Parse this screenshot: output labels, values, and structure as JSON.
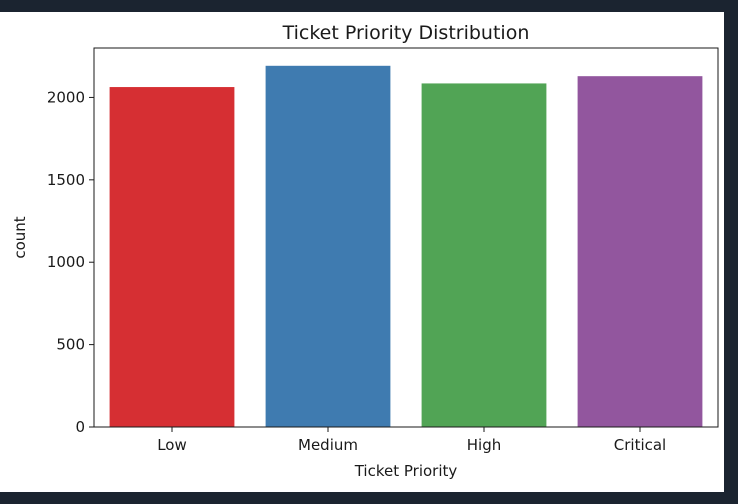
{
  "chart_data": {
    "type": "bar",
    "title": "Ticket Priority Distribution",
    "xlabel": "Ticket Priority",
    "ylabel": "count",
    "categories": [
      "Low",
      "Medium",
      "High",
      "Critical"
    ],
    "values": [
      2063,
      2192,
      2085,
      2129
    ],
    "colors": [
      "#d62f33",
      "#3f7bb0",
      "#51a455",
      "#92569e"
    ],
    "ylim": [
      0,
      2300
    ],
    "yticks": [
      0,
      500,
      1000,
      1500,
      2000
    ],
    "grid": false,
    "legend": "none"
  }
}
